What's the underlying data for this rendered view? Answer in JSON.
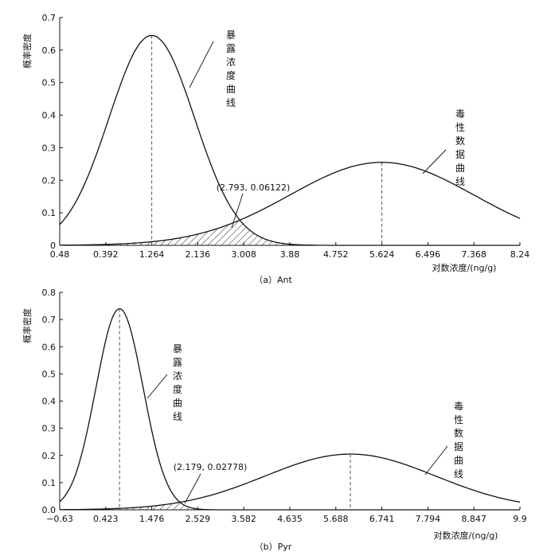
{
  "chart_data": [
    {
      "type": "line",
      "caption": "（a）Ant",
      "ylabel": "概率密度",
      "xlabel": "对数浓度/(ng/g)",
      "x_ticks": [
        "0.48",
        "0.392",
        "1.264",
        "2.136",
        "3.008",
        "3.88",
        "4.752",
        "5.624",
        "6.496",
        "7.368",
        "8.24"
      ],
      "y_ticks": [
        "0",
        "0.1",
        "0.2",
        "0.3",
        "0.4",
        "0.5",
        "0.6",
        "0.7"
      ],
      "ylim": [
        0,
        0.7
      ],
      "series": [
        {
          "name": "暴露浓度曲线",
          "mean_tick_index": 2.0,
          "std_ticks": 0.93,
          "peak": 0.645
        },
        {
          "name": "毒性数据曲线",
          "mean_tick_index": 7.0,
          "std_ticks": 2.0,
          "peak": 0.255
        }
      ],
      "intersection": {
        "x": 2.793,
        "y": 0.06122,
        "label": "(2.793, 0.06122)"
      },
      "grid": false
    },
    {
      "type": "line",
      "caption": "（b）Pyr",
      "ylabel": "概率密度",
      "xlabel": "对数浓度/(ng/g)",
      "x_ticks": [
        "−0.63",
        "0.423",
        "1.476",
        "2.529",
        "3.582",
        "4.635",
        "5.688",
        "6.741",
        "7.794",
        "8.847",
        "9.9"
      ],
      "y_ticks": [
        "0.0",
        "0.1",
        "0.2",
        "0.3",
        "0.4",
        "0.5",
        "0.6",
        "0.7",
        "0.8"
      ],
      "ylim": [
        0,
        0.8
      ],
      "series": [
        {
          "name": "暴露浓度曲线",
          "mean": 0.739,
          "std": 0.54,
          "peak": 0.74
        },
        {
          "name": "毒性数据曲线",
          "mean": 6.02,
          "std": 1.95,
          "peak": 0.205
        }
      ],
      "intersection": {
        "x": 2.179,
        "y": 0.02778,
        "label": "(2.179, 0.02778)"
      },
      "grid": false
    }
  ]
}
